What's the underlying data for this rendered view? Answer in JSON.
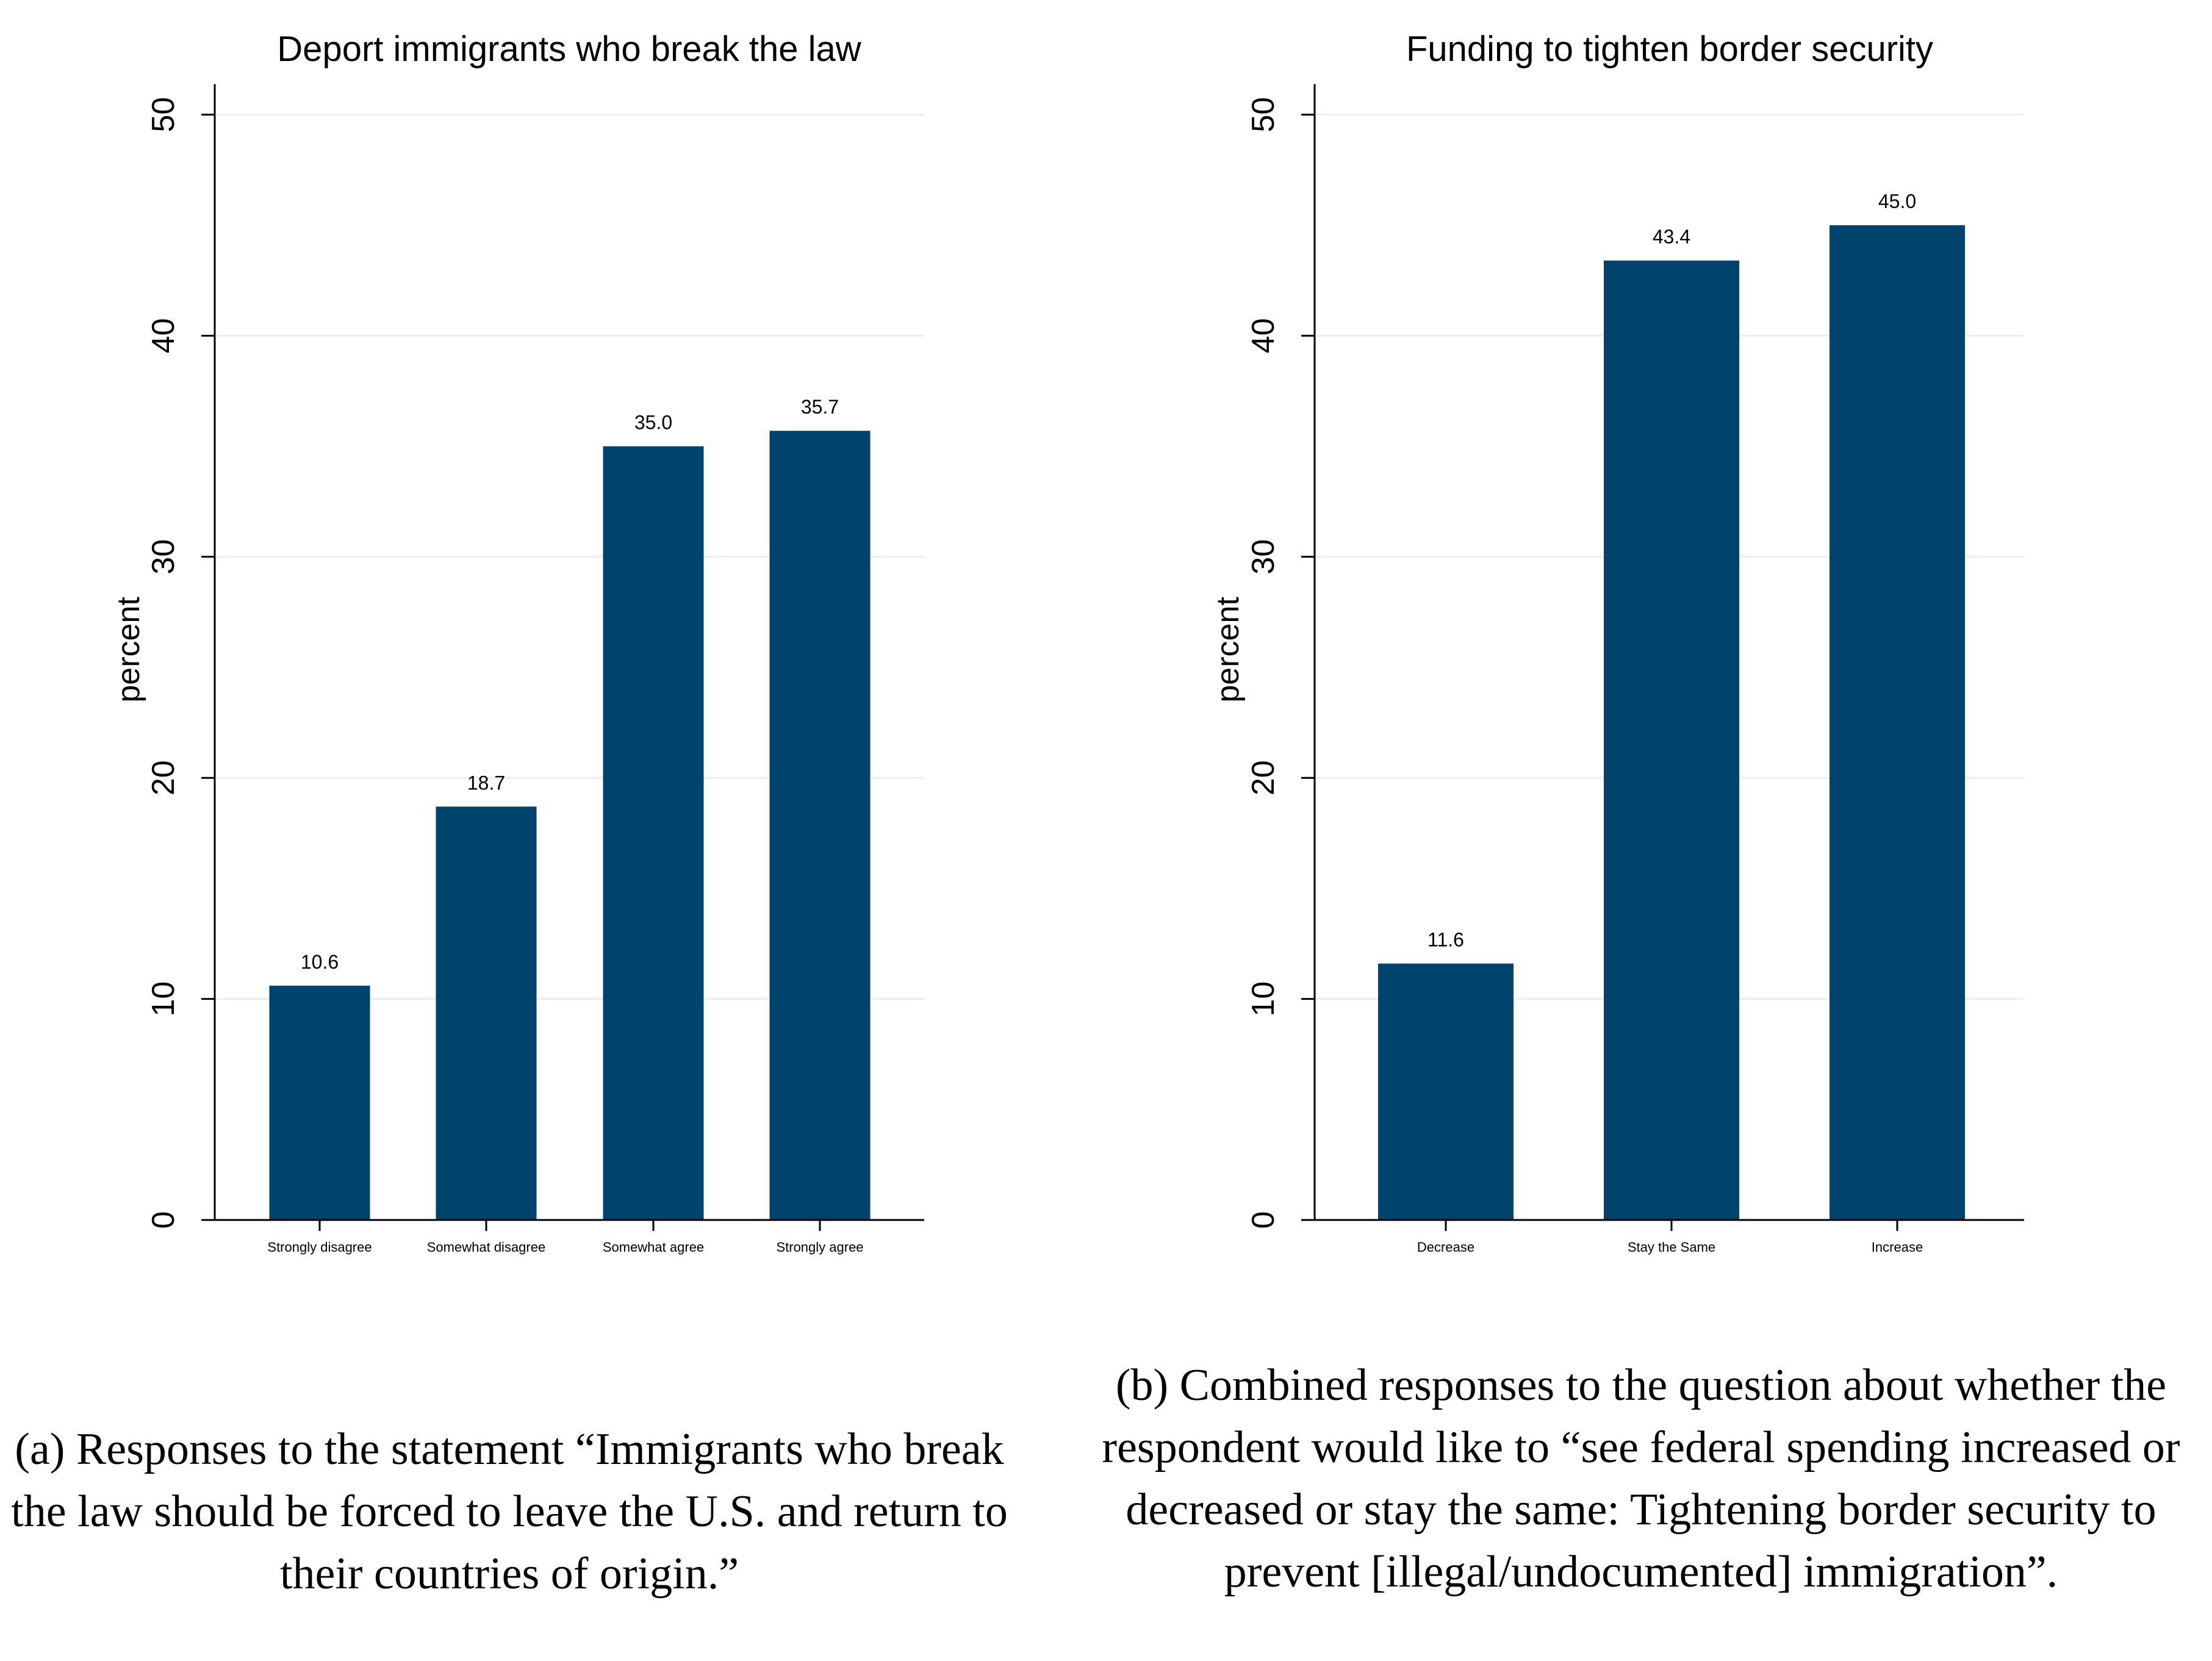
{
  "colors": {
    "bar": "#00446e",
    "grid": "#e8eef2",
    "axis": "#000000"
  },
  "chart_data": [
    {
      "type": "bar",
      "title": "Deport immigrants who break the law",
      "ylabel": "percent",
      "xlabel": "",
      "ylim": [
        0,
        50
      ],
      "yticks": [
        0,
        10,
        20,
        30,
        40,
        50
      ],
      "grid": true,
      "categories": [
        "Strongly disagree",
        "Somewhat disagree",
        "Somewhat agree",
        "Strongly agree"
      ],
      "values": [
        10.6,
        18.7,
        35.0,
        35.7
      ],
      "value_labels": [
        "10.6",
        "18.7",
        "35.0",
        "35.7"
      ],
      "caption": "(a) Responses to the statement “Immigrants who break the law should be forced to leave the U.S. and return to their countries of origin.”"
    },
    {
      "type": "bar",
      "title": "Funding to tighten border security",
      "ylabel": "percent",
      "xlabel": "",
      "ylim": [
        0,
        50
      ],
      "yticks": [
        0,
        10,
        20,
        30,
        40,
        50
      ],
      "grid": true,
      "categories": [
        "Decrease",
        "Stay the Same",
        "Increase"
      ],
      "values": [
        11.6,
        43.4,
        45.0
      ],
      "value_labels": [
        "11.6",
        "43.4",
        "45.0"
      ],
      "caption": "(b) Combined responses to the question about whether the respondent would like to “see federal spending increased or decreased or stay the same: Tightening border security to prevent [illegal/undocumented] immigration”."
    }
  ]
}
